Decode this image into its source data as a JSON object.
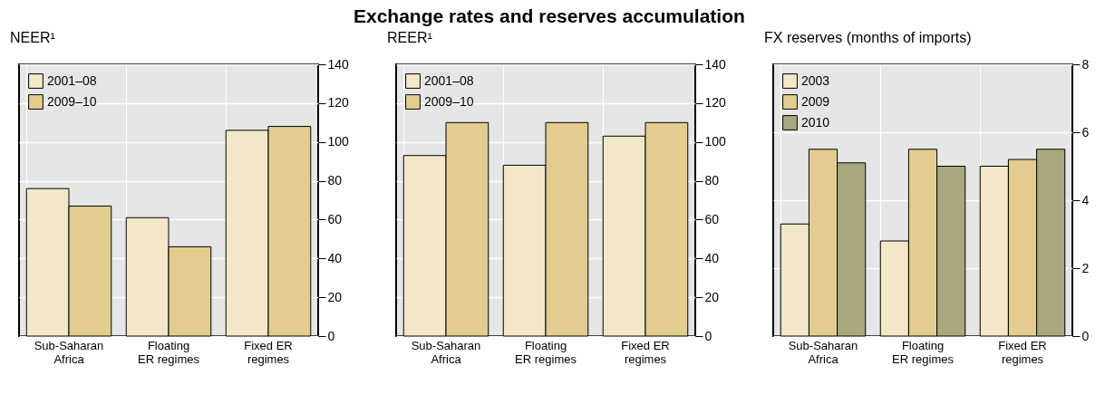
{
  "chart_data": [
    {
      "type": "other",
      "title": "Exchange rates and reserves accumulation"
    },
    {
      "type": "bar",
      "title": "NEER¹",
      "categories": [
        "Sub-Saharan Africa",
        "Floating ER regimes",
        "Fixed ER regimes"
      ],
      "series": [
        {
          "name": "2001–08",
          "color": "#f2e8c8",
          "values": [
            76,
            61,
            106
          ]
        },
        {
          "name": "2009–10",
          "color": "#e2cd8f",
          "values": [
            67,
            46,
            108
          ]
        }
      ],
      "ylim": [
        0,
        140
      ],
      "yticks": [
        0,
        20,
        40,
        60,
        80,
        100,
        120,
        140
      ],
      "grid": true,
      "legend": "top left"
    },
    {
      "type": "bar",
      "title": "REER¹",
      "categories": [
        "Sub-Saharan Africa",
        "Floating ER regimes",
        "Fixed ER regimes"
      ],
      "series": [
        {
          "name": "2001–08",
          "color": "#f2e8c8",
          "values": [
            93,
            88,
            103
          ]
        },
        {
          "name": "2009–10",
          "color": "#e2cd8f",
          "values": [
            110,
            110,
            110
          ]
        }
      ],
      "ylim": [
        0,
        140
      ],
      "yticks": [
        0,
        20,
        40,
        60,
        80,
        100,
        120,
        140
      ],
      "grid": true,
      "legend": "top left"
    },
    {
      "type": "bar",
      "title": "FX reserves (months of imports)",
      "categories": [
        "Sub-Saharan Africa",
        "Floating ER regimes",
        "Fixed ER regimes"
      ],
      "series": [
        {
          "name": "2003",
          "color": "#f2e8c8",
          "values": [
            3.3,
            2.8,
            5.0
          ]
        },
        {
          "name": "2009",
          "color": "#e2cd8f",
          "values": [
            5.5,
            5.5,
            5.2
          ]
        },
        {
          "name": "2010",
          "color": "#a8a87c",
          "values": [
            5.1,
            5.0,
            5.5
          ]
        }
      ],
      "ylim": [
        0,
        8
      ],
      "yticks": [
        0,
        2,
        4,
        6,
        8
      ],
      "grid": true,
      "legend": "top left"
    }
  ]
}
